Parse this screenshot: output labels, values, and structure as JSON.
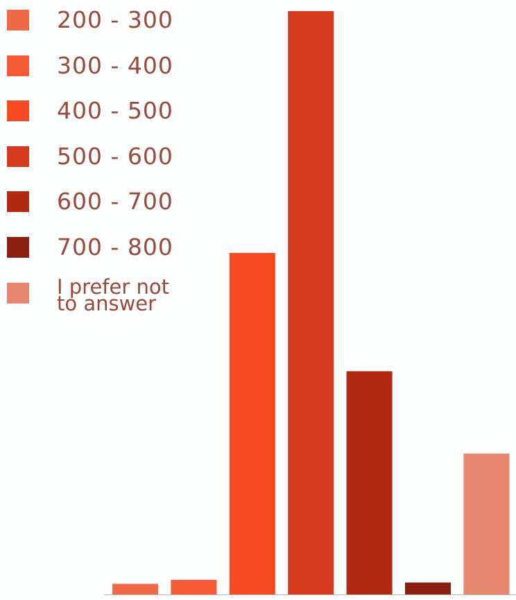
{
  "chart_data": {
    "type": "bar",
    "categories": [
      "200 - 300",
      "300 - 400",
      "400 - 500",
      "500 - 600",
      "600 - 700",
      "700 - 800",
      "I prefer not to answer"
    ],
    "values": [
      0.8,
      1.1,
      25.7,
      43.9,
      16.8,
      0.9,
      10.6
    ],
    "colors": [
      "#f06a48",
      "#f45a35",
      "#f54a22",
      "#d63a1e",
      "#b02a14",
      "#8c2010",
      "#e8876f"
    ],
    "ylim": [
      0,
      43.9
    ],
    "legend": "top-left"
  }
}
